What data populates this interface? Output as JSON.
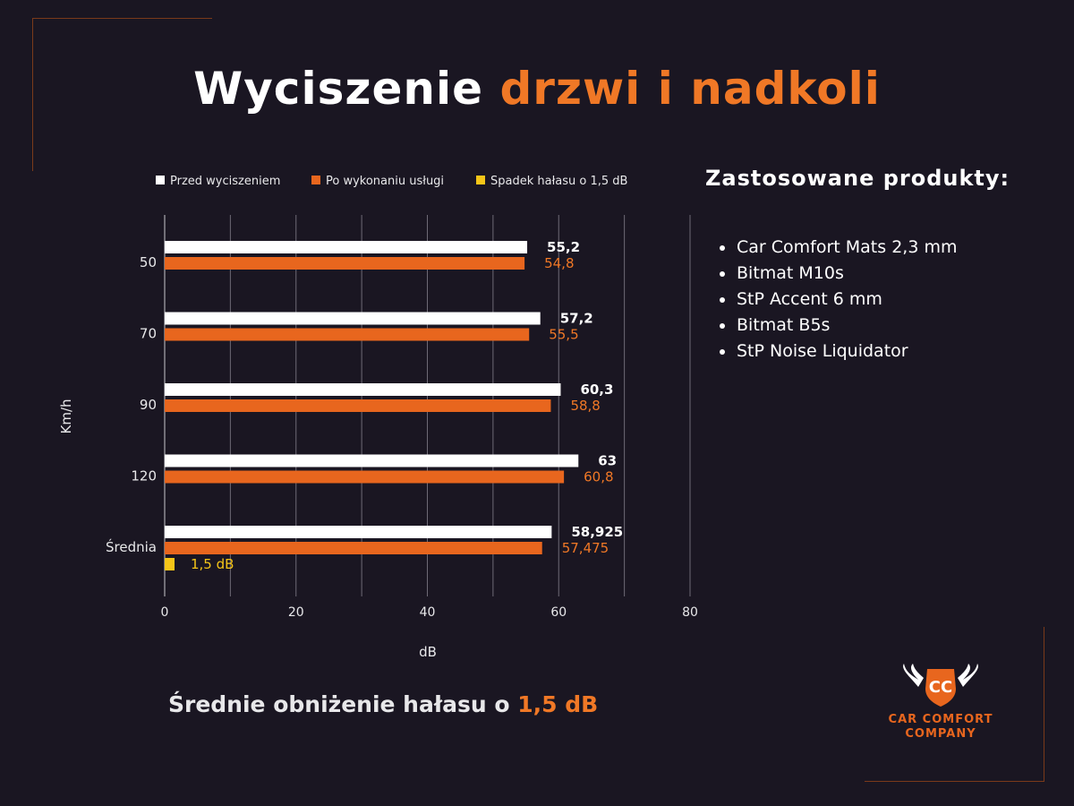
{
  "title": {
    "main": "Wyciszenie",
    "accent": "drzwi i nadkoli"
  },
  "colors": {
    "background": "#1a1622",
    "accent": "#f07826",
    "before": "#ffffff",
    "after": "#e8661e",
    "reduction": "#f5c518"
  },
  "legend": [
    "Przed wyciszeniem",
    "Po wykonaniu usługi",
    "Spadek hałasu o 1,5 dB"
  ],
  "chart_data": {
    "type": "bar",
    "orientation": "horizontal",
    "categories": [
      "50",
      "70",
      "90",
      "120",
      "Średnia"
    ],
    "series": [
      {
        "name": "Przed wyciszeniem",
        "values": [
          55.2,
          57.2,
          60.3,
          63,
          58.925
        ],
        "labels": [
          "55,2",
          "57,2",
          "60,3",
          "63",
          "58,925"
        ],
        "color": "#ffffff"
      },
      {
        "name": "Po wykonaniu usługi",
        "values": [
          54.8,
          55.5,
          58.8,
          60.8,
          57.475
        ],
        "labels": [
          "54,8",
          "55,5",
          "58,8",
          "60,8",
          "57,475"
        ],
        "color": "#e8661e"
      },
      {
        "name": "Spadek hałasu o 1,5 dB",
        "values": [
          null,
          null,
          null,
          null,
          1.5
        ],
        "labels": [
          "",
          "",
          "",
          "",
          "1,5 dB"
        ],
        "color": "#f5c518"
      }
    ],
    "xlabel": "dB",
    "ylabel": "Km/h",
    "xlim": [
      0,
      80
    ],
    "xticks": [
      0,
      20,
      40,
      60,
      80
    ],
    "grid": true,
    "legend_position": "top"
  },
  "products": {
    "title": "Zastosowane produkty:",
    "items": [
      "Car Comfort Mats 2,3 mm",
      "Bitmat M10s",
      "StP Accent 6 mm",
      "Bitmat B5s",
      "StP Noise Liquidator"
    ]
  },
  "summary": {
    "text": "Średnie obniżenie hałasu o",
    "value": "1,5 dB"
  },
  "logo": {
    "initials": "CC",
    "line1": "CAR COMFORT",
    "line2": "COMPANY"
  }
}
